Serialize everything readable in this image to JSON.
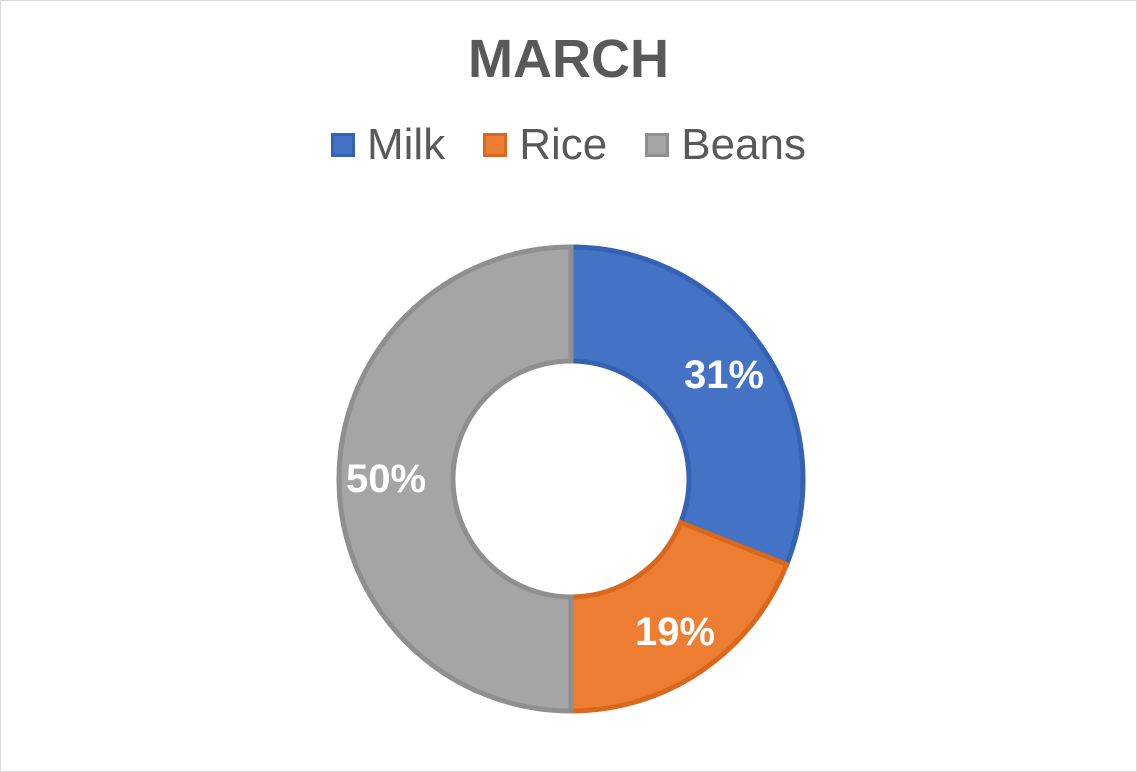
{
  "chart_data": {
    "type": "pie",
    "subtype": "donut",
    "title": "MARCH",
    "legend_position": "top",
    "categories": [
      "Milk",
      "Rice",
      "Beans"
    ],
    "values": [
      31,
      19,
      50
    ],
    "unit": "%",
    "data_labels": [
      "31%",
      "19%",
      "50%"
    ],
    "colors": [
      "#4472C4",
      "#ED7D31",
      "#A5A5A5"
    ],
    "border_colors": [
      "#3562B3",
      "#D9671E",
      "#8F8F8F"
    ]
  }
}
